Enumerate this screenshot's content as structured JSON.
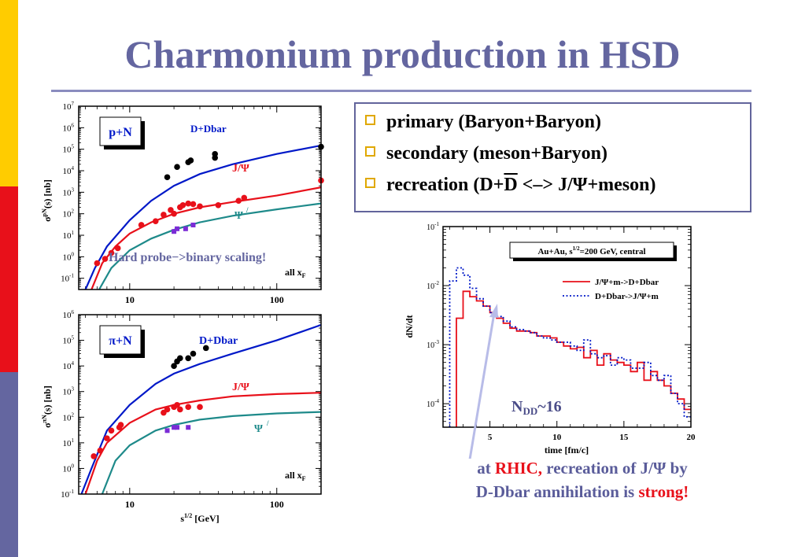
{
  "title": "Charmonium production in HSD",
  "colors": {
    "title": "#6466A0",
    "bar_yellow": "#FFCC00",
    "bar_red": "#E8101A",
    "bar_blue": "#6466A0",
    "bullet_square": "#E0A800",
    "curve_dd": "#0018C8",
    "curve_jpsi": "#E8101A",
    "curve_psip": "#1E8A8A"
  },
  "bullets": [
    {
      "text": "primary (Baryon+Baryon)"
    },
    {
      "text": "secondary (meson+Baryon)"
    },
    {
      "pre": "recreation (D+",
      "over": "D",
      "post": " <–> J/Ψ+meson)"
    }
  ],
  "pN": {
    "box_label": "p+N",
    "y_prefix": "σ",
    "y_sup": "pN",
    "y_suffix": "(s)  [nb]",
    "y_ticks": [
      {
        "b": "10",
        "e": "7"
      },
      {
        "b": "10",
        "e": "6"
      },
      {
        "b": "10",
        "e": "5"
      },
      {
        "b": "10",
        "e": "4"
      },
      {
        "b": "10",
        "e": "3"
      },
      {
        "b": "10",
        "e": "2"
      },
      {
        "b": "10",
        "e": "1"
      },
      {
        "b": "10",
        "e": "0"
      },
      {
        "b": "10",
        "e": "-1"
      }
    ],
    "x_ticks": [
      "10",
      "100"
    ],
    "dd_label": "D+Dbar",
    "jpsi_label": "J/Ψ",
    "psip_label": "Ψ",
    "psip_prime": "/",
    "allx": "all x",
    "allx_sub": "F",
    "annotation": "Hard probe−>binary scaling!"
  },
  "piN": {
    "box_label": "π+N",
    "y_prefix": "σ",
    "y_sup": "πN",
    "y_suffix": "(s)  [nb]",
    "y_ticks": [
      {
        "b": "10",
        "e": "6"
      },
      {
        "b": "10",
        "e": "5"
      },
      {
        "b": "10",
        "e": "4"
      },
      {
        "b": "10",
        "e": "3"
      },
      {
        "b": "10",
        "e": "2"
      },
      {
        "b": "10",
        "e": "1"
      },
      {
        "b": "10",
        "e": "0"
      },
      {
        "b": "10",
        "e": "-1"
      }
    ],
    "x_ticks": [
      "10",
      "100"
    ],
    "dd_label": "D+Dbar",
    "jpsi_label": "J/Ψ",
    "psip_label": "Ψ",
    "psip_prime": "/",
    "allx": "all x",
    "allx_sub": "F",
    "x_label_s": "s",
    "x_label_sup": "1/2",
    "x_label_unit": " [GeV]"
  },
  "rhic": {
    "legend_title_pre": "Au+Au,  s",
    "legend_title_sup": "1/2",
    "legend_title_post": "=200 GeV, central",
    "series1_label": "J/Ψ+m->D+Dbar",
    "series2_label": "D+Dbar->J/Ψ+m",
    "y_label": "dN/dt",
    "x_label": "time [fm/c]",
    "y_ticks": [
      {
        "b": "10",
        "e": "-1"
      },
      {
        "b": "10",
        "e": "-2"
      },
      {
        "b": "10",
        "e": "-3"
      },
      {
        "b": "10",
        "e": "-4"
      }
    ],
    "x_ticks": [
      "5",
      "10",
      "15",
      "20"
    ],
    "ndd_pre": "N",
    "ndd_sub": "DD",
    "ndd_post": "~16"
  },
  "caption": {
    "line1_a": "at ",
    "line1_b": "RHIC,",
    "line1_c": " recreation of J/Ψ by",
    "line2_a": "D-Dbar annihilation is ",
    "line2_b": "strong!"
  },
  "chart_data": [
    {
      "type": "scatter",
      "subplot": "p+N",
      "xlabel": "",
      "ylabel": "σ^pN(s) [nb]",
      "xscale": "log",
      "yscale": "log",
      "xlim": [
        4.5,
        200
      ],
      "ylim": [
        0.03,
        10000000
      ],
      "series": [
        {
          "name": "D+Dbar",
          "curve": [
            [
              5,
              0.03
            ],
            [
              5.8,
              0.3
            ],
            [
              7,
              3
            ],
            [
              10,
              50
            ],
            [
              14,
              400
            ],
            [
              20,
              2000
            ],
            [
              30,
              7000
            ],
            [
              50,
              20000
            ],
            [
              100,
              60000
            ],
            [
              200,
              150000
            ]
          ],
          "points": [
            [
              18,
              5000
            ],
            [
              21,
              15000
            ],
            [
              25,
              25000
            ],
            [
              26,
              30000
            ],
            [
              38,
              60000
            ],
            [
              38,
              40000
            ],
            [
              200,
              130000
            ]
          ]
        },
        {
          "name": "J/Ψ",
          "curve": [
            [
              5.5,
              0.03
            ],
            [
              6.5,
              0.5
            ],
            [
              8,
              3
            ],
            [
              10,
              12
            ],
            [
              14,
              40
            ],
            [
              20,
              100
            ],
            [
              30,
              200
            ],
            [
              50,
              350
            ],
            [
              100,
              700
            ],
            [
              200,
              1700
            ]
          ],
          "points": [
            [
              6,
              0.5
            ],
            [
              6.8,
              0.8
            ],
            [
              7.5,
              1.5
            ],
            [
              8.3,
              2.5
            ],
            [
              12,
              30
            ],
            [
              15,
              45
            ],
            [
              17,
              90
            ],
            [
              19,
              150
            ],
            [
              20,
              100
            ],
            [
              22,
              200
            ],
            [
              23,
              250
            ],
            [
              25,
              300
            ],
            [
              27,
              280
            ],
            [
              30,
              220
            ],
            [
              40,
              250
            ],
            [
              55,
              400
            ],
            [
              60,
              550
            ],
            [
              200,
              3500
            ]
          ]
        },
        {
          "name": "Ψ/",
          "curve": [
            [
              6.2,
              0.03
            ],
            [
              7.5,
              0.3
            ],
            [
              10,
              2
            ],
            [
              14,
              7
            ],
            [
              20,
              18
            ],
            [
              30,
              40
            ],
            [
              50,
              80
            ],
            [
              100,
              160
            ],
            [
              200,
              300
            ]
          ],
          "points": [
            [
              20,
              15
            ],
            [
              21,
              20
            ],
            [
              24,
              20
            ],
            [
              27,
              30
            ]
          ]
        }
      ]
    },
    {
      "type": "scatter",
      "subplot": "π+N",
      "xlabel": "s^1/2 [GeV]",
      "ylabel": "σ^πN(s) [nb]",
      "xscale": "log",
      "yscale": "log",
      "xlim": [
        4.5,
        200
      ],
      "ylim": [
        0.1,
        1000000
      ],
      "series": [
        {
          "name": "D+Dbar",
          "curve": [
            [
              4.7,
              0.1
            ],
            [
              5.5,
              1
            ],
            [
              7,
              30
            ],
            [
              10,
              300
            ],
            [
              15,
              2000
            ],
            [
              20,
              5000
            ],
            [
              30,
              12000
            ],
            [
              50,
              30000
            ],
            [
              100,
              100000
            ],
            [
              200,
              400000
            ]
          ],
          "points": [
            [
              20,
              10000
            ],
            [
              21,
              15000
            ],
            [
              22,
              20000
            ],
            [
              25,
              20000
            ],
            [
              27,
              30000
            ],
            [
              33,
              50000
            ]
          ]
        },
        {
          "name": "J/Ψ",
          "curve": [
            [
              5,
              0.1
            ],
            [
              6,
              2
            ],
            [
              7,
              10
            ],
            [
              10,
              60
            ],
            [
              15,
              200
            ],
            [
              20,
              300
            ],
            [
              30,
              450
            ],
            [
              50,
              650
            ],
            [
              100,
              800
            ],
            [
              200,
              900
            ]
          ],
          "points": [
            [
              5.7,
              3
            ],
            [
              6.3,
              5
            ],
            [
              7,
              15
            ],
            [
              7.5,
              30
            ],
            [
              8.5,
              40
            ],
            [
              8.7,
              50
            ],
            [
              17,
              150
            ],
            [
              18,
              200
            ],
            [
              20,
              250
            ],
            [
              21,
              300
            ],
            [
              22,
              200
            ],
            [
              25,
              250
            ],
            [
              30,
              250
            ]
          ]
        },
        {
          "name": "Ψ/",
          "curve": [
            [
              6.5,
              0.1
            ],
            [
              8,
              2
            ],
            [
              10,
              8
            ],
            [
              15,
              30
            ],
            [
              20,
              50
            ],
            [
              30,
              80
            ],
            [
              50,
              110
            ],
            [
              100,
              140
            ],
            [
              200,
              160
            ]
          ],
          "points": [
            [
              18,
              30
            ],
            [
              20,
              40
            ],
            [
              21,
              40
            ],
            [
              25,
              40
            ]
          ]
        }
      ]
    },
    {
      "type": "line",
      "subplot": "RHIC Au+Au",
      "xlabel": "time [fm/c]",
      "ylabel": "dN/dt",
      "yscale": "log",
      "xlim": [
        1.5,
        20
      ],
      "ylim": [
        4e-05,
        0.1
      ],
      "series": [
        {
          "name": "J/Ψ+m->D+Dbar",
          "style": "step-solid",
          "x": [
            2.5,
            3,
            3.5,
            4,
            4.5,
            5,
            5.5,
            6,
            6.5,
            7,
            7.5,
            8,
            8.5,
            9,
            9.5,
            10,
            10.5,
            11,
            11.5,
            12,
            12.5,
            13,
            13.5,
            14,
            14.5,
            15,
            15.5,
            16,
            16.5,
            17,
            17.5,
            18,
            18.5,
            19,
            19.5
          ],
          "y": [
            0.0028,
            0.008,
            0.0065,
            0.0055,
            0.0045,
            0.0035,
            0.0028,
            0.0023,
            0.0019,
            0.0017,
            0.0017,
            0.0016,
            0.0014,
            0.0014,
            0.0013,
            0.0011,
            0.00095,
            0.00085,
            0.0009,
            0.0006,
            0.0008,
            0.00045,
            0.0007,
            0.00055,
            0.0005,
            0.00045,
            0.00035,
            0.0005,
            0.00025,
            0.00035,
            0.00025,
            0.0002,
            0.00015,
            0.00012,
            8e-05
          ]
        },
        {
          "name": "D+Dbar->J/Ψ+m",
          "style": "step-dotted",
          "x": [
            2,
            2.5,
            3,
            3.5,
            4,
            4.5,
            5,
            5.5,
            6,
            6.5,
            7,
            7.5,
            8,
            8.5,
            9,
            9.5,
            10,
            10.5,
            11,
            11.5,
            12,
            12.5,
            13,
            13.5,
            14,
            14.5,
            15,
            15.5,
            16,
            16.5,
            17,
            17.5,
            18,
            18.5,
            19,
            19.5
          ],
          "y": [
            0.012,
            0.02,
            0.015,
            0.009,
            0.006,
            0.0045,
            0.0035,
            0.003,
            0.0025,
            0.002,
            0.0018,
            0.0017,
            0.0016,
            0.0014,
            0.0013,
            0.0012,
            0.0011,
            0.0011,
            0.00095,
            0.0008,
            0.0012,
            0.0007,
            0.0006,
            0.00065,
            0.00045,
            0.0006,
            0.00055,
            0.0004,
            0.0004,
            0.0005,
            0.0003,
            0.00025,
            0.0003,
            0.00015,
            0.0001,
            6e-05
          ]
        }
      ]
    }
  ]
}
